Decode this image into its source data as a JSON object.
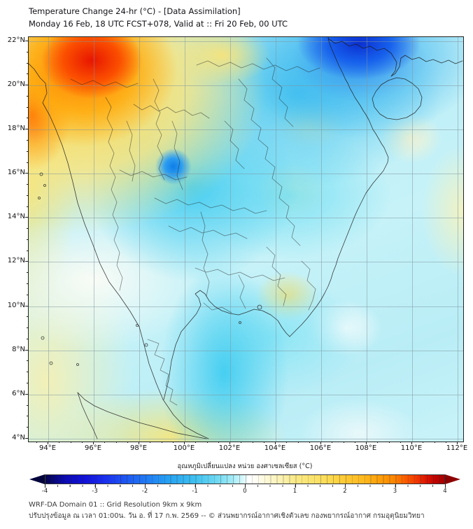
{
  "title": "Temperature Change 24-hr (°C) - [Data Assimilation]",
  "subtitle": "Monday 16 Feb, 18 UTC FCST+078, Valid at :: Fri 20 Feb, 00 UTC",
  "map": {
    "lat_ticks": [
      "22°N",
      "20°N",
      "18°N",
      "16°N",
      "14°N",
      "12°N",
      "10°N",
      "8°N",
      "6°N",
      "4°N"
    ],
    "lon_ticks": [
      "94°E",
      "96°E",
      "98°E",
      "100°E",
      "102°E",
      "104°E",
      "106°E",
      "108°E",
      "110°E",
      "112°E"
    ]
  },
  "colorbar": {
    "title": "อุณหภูมิเปลี่ยนแปลง หน่วย องศาเซลเซียส (°C)",
    "ticks": [
      "-4",
      "-3",
      "-2",
      "-1",
      "0",
      "1",
      "2",
      "3",
      "4"
    ],
    "unit": "°C",
    "range": [
      -4,
      4
    ],
    "cool_end_color": "#04044a",
    "zero_color": "#ffffff",
    "warm_end_color": "#a50000"
  },
  "footer": {
    "line1": "WRF-DA Domain 01 :: Grid Resolution 9km x 9km",
    "line2": "ปรับปรุงข้อมูล ณ เวลา 01:00น. วัน อ. ที่ 17 ก.พ. 2569 -- © ส่วนพยากรณ์อากาศเชิงตัวเลข กองพยากรณ์อากาศ กรมอุตุนิยมวิทยา"
  },
  "field_features": [
    {
      "region": "northwest (Myanmar, ~94-96E 20-22N)",
      "change_c": "+2 to +4 warming"
    },
    {
      "region": "north Vietnam / Gulf of Tonkin (~105-108E 21-22N)",
      "change_c": "-3 to -4 cooling"
    },
    {
      "region": "north-central Thailand (~100E 16-17N)",
      "change_c": "-2 cooling spot"
    },
    {
      "region": "most of Indochina and adjacent seas",
      "change_c": "-0.5 to -1.5 cooling"
    },
    {
      "region": "Andaman Sea, north Sumatra, Mekong delta",
      "change_c": "0 to +1 slight warming"
    }
  ]
}
